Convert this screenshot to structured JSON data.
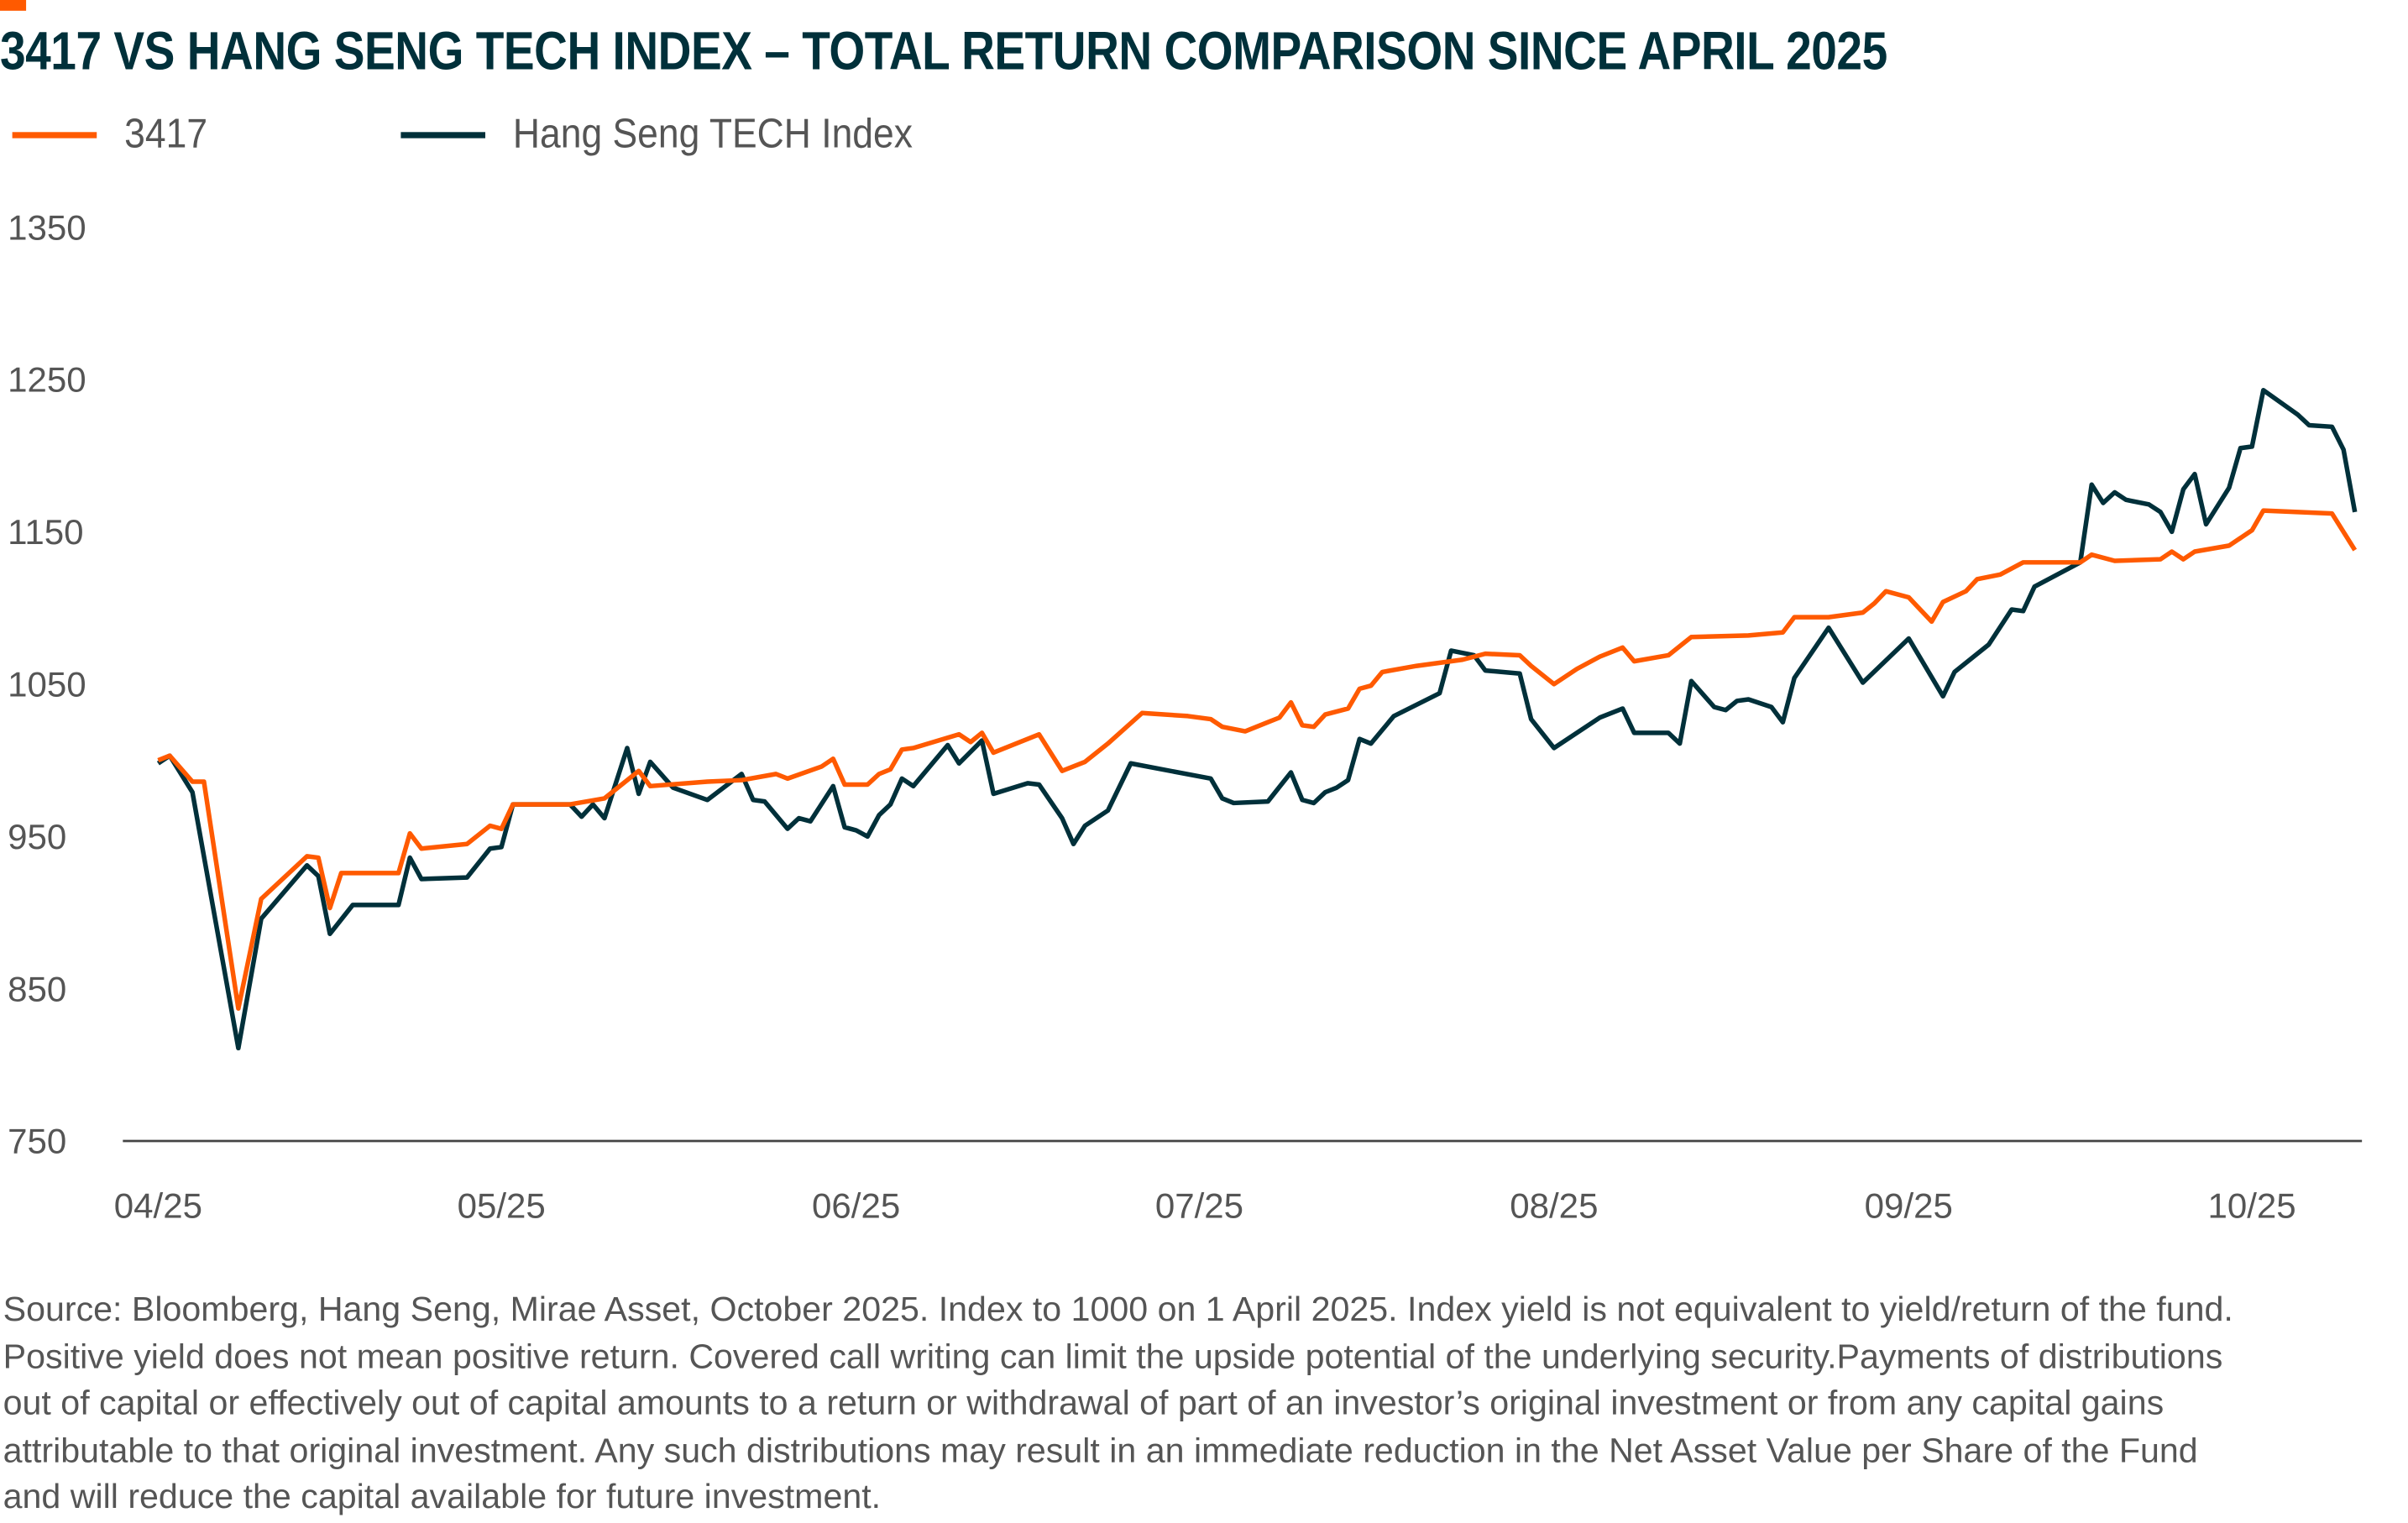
{
  "chart_data": {
    "type": "line",
    "title": "3417 VS HANG SENG TECH INDEX – TOTAL RETURN COMPARISON SINCE APRIL 2025",
    "xlabel": "",
    "ylabel": "",
    "x_unit": "days since 1 April 2025",
    "ylim": [
      750,
      1350
    ],
    "yticks": [
      750,
      850,
      950,
      1050,
      1150,
      1250,
      1350
    ],
    "xticks": [
      {
        "day": 0,
        "label": "04/25"
      },
      {
        "day": 30,
        "label": "05/25"
      },
      {
        "day": 61,
        "label": "06/25"
      },
      {
        "day": 91,
        "label": "07/25"
      },
      {
        "day": 122,
        "label": "08/25"
      },
      {
        "day": 153,
        "label": "09/25"
      },
      {
        "day": 183,
        "label": "10/25"
      }
    ],
    "legend_position": "top-left",
    "grid": false,
    "series": [
      {
        "name": "3417",
        "color": "#ff5a00",
        "x": [
          0,
          1,
          3,
          4,
          7,
          9,
          13,
          14,
          15,
          16,
          21,
          22,
          23,
          27,
          29,
          30,
          31,
          36,
          39,
          42,
          43,
          48,
          51,
          54,
          55,
          58,
          59,
          60,
          62,
          63,
          64,
          65,
          66,
          70,
          71,
          72,
          73,
          77,
          78,
          79,
          81,
          83,
          86,
          90,
          92,
          93,
          95,
          97,
          98,
          99,
          100,
          101,
          102,
          104,
          105,
          106,
          107,
          110,
          114,
          116,
          119,
          120,
          122,
          124,
          126,
          128,
          129,
          132,
          134,
          139,
          142,
          143,
          146,
          149,
          150,
          151,
          153,
          155,
          156,
          158,
          159,
          161,
          163,
          168,
          169,
          171,
          175,
          176,
          177,
          178,
          181,
          183,
          184,
          187,
          190,
          192
        ],
        "y": [
          1000,
          1003,
          986,
          986,
          837,
          909,
          937,
          936,
          903,
          926,
          926,
          952,
          942,
          945,
          957,
          955,
          971,
          971,
          975,
          993,
          983,
          986,
          987,
          991,
          988,
          996,
          1001,
          984,
          984,
          991,
          994,
          1007,
          1008,
          1017,
          1012,
          1018,
          1005,
          1017,
          1005,
          993,
          999,
          1011,
          1031,
          1029,
          1027,
          1022,
          1019,
          1025,
          1028,
          1038,
          1023,
          1022,
          1030,
          1034,
          1047,
          1049,
          1058,
          1062,
          1066,
          1070,
          1069,
          1062,
          1050,
          1060,
          1068,
          1074,
          1065,
          1069,
          1081,
          1082,
          1084,
          1094,
          1094,
          1097,
          1103,
          1111,
          1107,
          1091,
          1104,
          1111,
          1119,
          1122,
          1130,
          1130,
          1135,
          1131,
          1132,
          1137,
          1132,
          1137,
          1141,
          1151,
          1164,
          1163,
          1162,
          1138
        ]
      },
      {
        "name": "Hang Seng TECH Index",
        "color": "#00303a",
        "x": [
          0,
          1,
          3,
          7,
          9,
          13,
          14,
          15,
          17,
          21,
          22,
          23,
          27,
          29,
          30,
          31,
          36,
          37,
          38,
          39,
          41,
          42,
          43,
          45,
          48,
          51,
          52,
          53,
          55,
          56,
          57,
          59,
          60,
          61,
          62,
          63,
          64,
          65,
          66,
          69,
          70,
          72,
          73,
          76,
          77,
          79,
          80,
          81,
          83,
          85,
          92,
          93,
          94,
          97,
          99,
          100,
          101,
          102,
          103,
          104,
          105,
          106,
          108,
          112,
          113,
          115,
          116,
          119,
          120,
          122,
          126,
          128,
          129,
          132,
          133,
          134,
          136,
          137,
          138,
          139,
          141,
          142,
          143,
          146,
          149,
          153,
          156,
          157,
          160,
          162,
          163,
          164,
          168,
          169,
          170,
          171,
          172,
          174,
          175,
          176,
          177,
          178,
          179,
          181,
          182,
          183,
          184,
          187,
          188,
          190,
          191,
          192
        ],
        "y": [
          998,
          1003,
          979,
          811,
          896,
          931,
          924,
          886,
          905,
          905,
          936,
          922,
          923,
          942,
          943,
          971,
          971,
          963,
          971,
          962,
          1008,
          978,
          999,
          982,
          974,
          991,
          974,
          973,
          955,
          962,
          960,
          983,
          956,
          954,
          950,
          964,
          971,
          988,
          983,
          1010,
          998,
          1013,
          978,
          985,
          984,
          962,
          945,
          957,
          967,
          998,
          988,
          975,
          972,
          973,
          992,
          974,
          972,
          979,
          982,
          987,
          1014,
          1011,
          1029,
          1044,
          1072,
          1069,
          1059,
          1057,
          1027,
          1008,
          1028,
          1034,
          1018,
          1018,
          1011,
          1052,
          1035,
          1033,
          1039,
          1040,
          1035,
          1025,
          1054,
          1087,
          1051,
          1080,
          1042,
          1058,
          1076,
          1099,
          1098,
          1114,
          1130,
          1181,
          1169,
          1176,
          1171,
          1168,
          1163,
          1150,
          1178,
          1188,
          1155,
          1179,
          1205,
          1206,
          1243,
          1227,
          1220,
          1219,
          1204,
          1163
        ]
      }
    ]
  },
  "legend": {
    "series1": "3417",
    "series2": "Hang Seng TECH Index"
  },
  "footnote": [
    "Source: Bloomberg, Hang Seng, Mirae Asset, October 2025. Index to 1000 on 1 April 2025. Index yield is not equivalent to yield/return of the fund.",
    "Positive yield does not mean positive return. Covered call writing can limit the upside potential of the underlying security.Payments of distributions",
    "out of capital or effectively out of capital amounts to a return or withdrawal of part of an investor’s original investment or from any capital gains",
    "attributable to that original investment. Any such distributions may result in an immediate reduction in the Net Asset Value per Share of the Fund",
    "and will reduce the capital available for future investment."
  ]
}
